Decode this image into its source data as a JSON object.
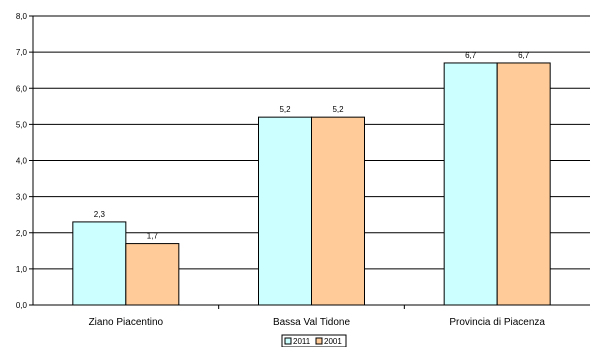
{
  "chart_data": {
    "type": "bar",
    "categories": [
      "Ziano Piacentino",
      "Bassa Val Tidone",
      "Provincia di Piacenza"
    ],
    "series": [
      {
        "name": "2011",
        "values": [
          2.3,
          5.2,
          6.7
        ],
        "color": "#ccffff",
        "labels": [
          "2,3",
          "5,2",
          "6,7"
        ]
      },
      {
        "name": "2001",
        "values": [
          1.7,
          5.2,
          6.7
        ],
        "color": "#ffcc99",
        "labels": [
          "1,7",
          "5,2",
          "6,7"
        ]
      }
    ],
    "yticks": [
      "0,0",
      "1,0",
      "2,0",
      "3,0",
      "4,0",
      "5,0",
      "6,0",
      "7,0",
      "8,0"
    ],
    "ylim": [
      0,
      8
    ],
    "grid": true,
    "legend_position": "bottom"
  }
}
